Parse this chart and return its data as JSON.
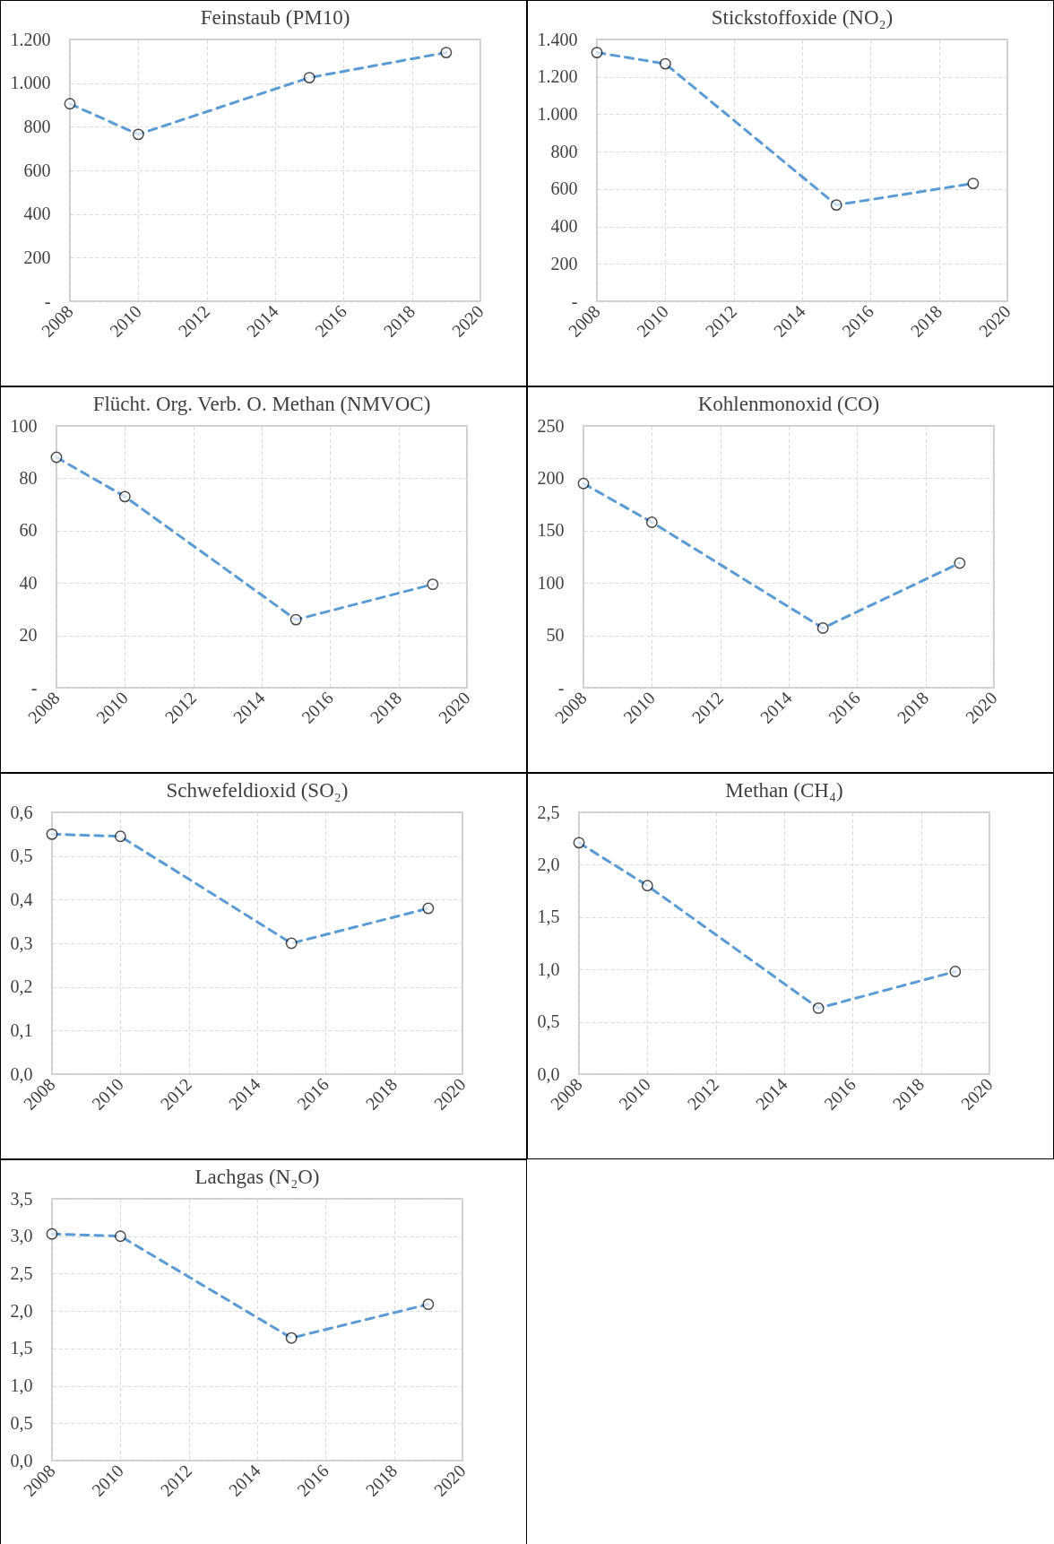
{
  "chart_data": [
    {
      "type": "line",
      "title": "Feinstaub (PM10)",
      "x": [
        2008,
        2010,
        2015,
        2019
      ],
      "series": [
        {
          "color": "#5b9bd5",
          "values": [
            905,
            765,
            1025,
            1140
          ]
        }
      ],
      "xlim": [
        2008,
        2020
      ],
      "xticks": [
        2008,
        2010,
        2012,
        2014,
        2016,
        2018,
        2020
      ],
      "ylim": [
        0,
        1200
      ],
      "yticks": [
        {
          "value": 0,
          "label": "-"
        },
        200,
        400,
        600,
        800,
        {
          "value": 1000,
          "label": "1.000"
        },
        {
          "value": 1200,
          "label": "1.200"
        }
      ],
      "grid": true,
      "marker": "circle",
      "line_style": "dashed"
    },
    {
      "type": "line",
      "title": "Stickstoffoxide (NO₂)",
      "x": [
        2008,
        2010,
        2015,
        2019
      ],
      "series": [
        {
          "color": "#5b9bd5",
          "values": [
            1330,
            1270,
            515,
            630
          ]
        }
      ],
      "xlim": [
        2008,
        2020
      ],
      "xticks": [
        2008,
        2010,
        2012,
        2014,
        2016,
        2018,
        2020
      ],
      "ylim": [
        0,
        1400
      ],
      "yticks": [
        {
          "value": 0,
          "label": "-"
        },
        200,
        400,
        600,
        800,
        {
          "value": 1000,
          "label": "1.000"
        },
        {
          "value": 1200,
          "label": "1.200"
        },
        {
          "value": 1400,
          "label": "1.400"
        }
      ],
      "grid": true,
      "marker": "circle",
      "line_style": "dashed"
    },
    {
      "type": "line",
      "title": "Flücht. Org. Verb. O. Methan (NMVOC)",
      "x": [
        2008,
        2010,
        2015,
        2019
      ],
      "series": [
        {
          "color": "#5b9bd5",
          "values": [
            88,
            73,
            26,
            39.5
          ]
        }
      ],
      "xlim": [
        2008,
        2020
      ],
      "xticks": [
        2008,
        2010,
        2012,
        2014,
        2016,
        2018,
        2020
      ],
      "ylim": [
        0,
        100
      ],
      "yticks": [
        {
          "value": 0,
          "label": "-"
        },
        20,
        40,
        60,
        80,
        100
      ],
      "grid": true,
      "marker": "circle",
      "line_style": "dashed"
    },
    {
      "type": "line",
      "title": "Kohlenmonoxid (CO)",
      "x": [
        2008,
        2010,
        2015,
        2019
      ],
      "series": [
        {
          "color": "#5b9bd5",
          "values": [
            195,
            158,
            57,
            119
          ]
        }
      ],
      "xlim": [
        2008,
        2020
      ],
      "xticks": [
        2008,
        2010,
        2012,
        2014,
        2016,
        2018,
        2020
      ],
      "ylim": [
        0,
        250
      ],
      "yticks": [
        {
          "value": 0,
          "label": "-"
        },
        50,
        100,
        150,
        200,
        250
      ],
      "grid": true,
      "marker": "circle",
      "line_style": "dashed"
    },
    {
      "type": "line",
      "title": "Schwefeldioxid (SO₂)",
      "x": [
        2008,
        2010,
        2015,
        2019
      ],
      "series": [
        {
          "color": "#5b9bd5",
          "values": [
            0.55,
            0.545,
            0.3,
            0.38
          ]
        }
      ],
      "xlim": [
        2008,
        2020
      ],
      "xticks": [
        2008,
        2010,
        2012,
        2014,
        2016,
        2018,
        2020
      ],
      "ylim": [
        0,
        0.6
      ],
      "yticks": [
        {
          "value": 0,
          "label": "0,0"
        },
        {
          "value": 0.1,
          "label": "0,1"
        },
        {
          "value": 0.2,
          "label": "0,2"
        },
        {
          "value": 0.3,
          "label": "0,3"
        },
        {
          "value": 0.4,
          "label": "0,4"
        },
        {
          "value": 0.5,
          "label": "0,5"
        },
        {
          "value": 0.6,
          "label": "0,6"
        }
      ],
      "grid": true,
      "marker": "circle",
      "line_style": "dashed"
    },
    {
      "type": "line",
      "title": "Methan (CH₄)",
      "x": [
        2008,
        2010,
        2015,
        2019
      ],
      "series": [
        {
          "color": "#5b9bd5",
          "values": [
            2.21,
            1.8,
            0.63,
            0.98
          ]
        }
      ],
      "xlim": [
        2008,
        2020
      ],
      "xticks": [
        2008,
        2010,
        2012,
        2014,
        2016,
        2018,
        2020
      ],
      "ylim": [
        0,
        2.5
      ],
      "yticks": [
        {
          "value": 0,
          "label": "0,0"
        },
        {
          "value": 0.5,
          "label": "0,5"
        },
        {
          "value": 1,
          "label": "1,0"
        },
        {
          "value": 1.5,
          "label": "1,5"
        },
        {
          "value": 2,
          "label": "2,0"
        },
        {
          "value": 2.5,
          "label": "2,5"
        }
      ],
      "grid": true,
      "marker": "circle",
      "line_style": "dashed"
    },
    {
      "type": "line",
      "title": "Lachgas (N₂O)",
      "x": [
        2008,
        2010,
        2015,
        2019
      ],
      "series": [
        {
          "color": "#5b9bd5",
          "values": [
            3.03,
            3.0,
            1.64,
            2.09
          ]
        }
      ],
      "xlim": [
        2008,
        2020
      ],
      "xticks": [
        2008,
        2010,
        2012,
        2014,
        2016,
        2018,
        2020
      ],
      "ylim": [
        0,
        3.5
      ],
      "yticks": [
        {
          "value": 0,
          "label": "0,0"
        },
        {
          "value": 0.5,
          "label": "0,5"
        },
        {
          "value": 1,
          "label": "1,0"
        },
        {
          "value": 1.5,
          "label": "1,5"
        },
        {
          "value": 2,
          "label": "2,0"
        },
        {
          "value": 2.5,
          "label": "2,5"
        },
        {
          "value": 3,
          "label": "3,0"
        },
        {
          "value": 3.5,
          "label": "3,5"
        }
      ],
      "grid": true,
      "marker": "circle",
      "line_style": "dashed"
    }
  ]
}
